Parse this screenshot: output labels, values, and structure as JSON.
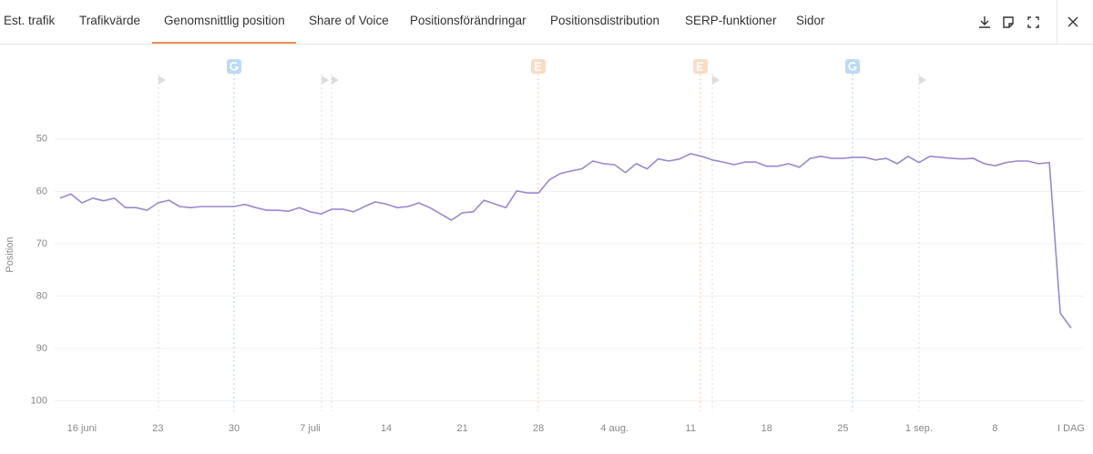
{
  "tabs": [
    "Est. trafik",
    "Trafikvärde",
    "Genomsnittlig position",
    "Share of Voice",
    "Positionsförändringar",
    "Positionsdistribution",
    "SERP-funktioner",
    "Sidor"
  ],
  "active_tab": 2,
  "chart_data": {
    "type": "line",
    "y_label": "Position",
    "y_inverted": true,
    "grid": true,
    "color": "#9b87d0",
    "ylim": [
      33,
      102
    ],
    "yticks": [
      50,
      60,
      70,
      80,
      90,
      100
    ],
    "categories": [
      null,
      null,
      "16 juni",
      null,
      null,
      null,
      null,
      null,
      null,
      "23",
      null,
      null,
      null,
      null,
      null,
      null,
      "30",
      null,
      null,
      null,
      null,
      null,
      null,
      "7 juli",
      null,
      null,
      null,
      null,
      null,
      null,
      "14",
      null,
      null,
      null,
      null,
      null,
      null,
      "21",
      null,
      null,
      null,
      null,
      null,
      null,
      "28",
      null,
      null,
      null,
      null,
      null,
      null,
      "4 aug.",
      null,
      null,
      null,
      null,
      null,
      null,
      "11",
      null,
      null,
      null,
      null,
      null,
      null,
      "18",
      null,
      null,
      null,
      null,
      null,
      null,
      "25",
      null,
      null,
      null,
      null,
      null,
      null,
      "1 sep.",
      null,
      null,
      null,
      null,
      null,
      null,
      "8",
      null,
      null,
      null,
      null,
      null,
      null,
      "I DAG"
    ],
    "values": [
      61.3,
      60.5,
      62.2,
      61.3,
      61.8,
      61.3,
      63.1,
      63.1,
      63.6,
      62.2,
      61.7,
      62.9,
      63.1,
      62.9,
      62.9,
      62.9,
      62.9,
      62.5,
      63.1,
      63.6,
      63.6,
      63.8,
      63.1,
      63.9,
      64.3,
      63.4,
      63.4,
      63.9,
      62.9,
      62.0,
      62.4,
      63.1,
      62.9,
      62.2,
      63.1,
      64.3,
      65.5,
      64.1,
      63.9,
      61.7,
      62.4,
      63.1,
      59.9,
      60.3,
      60.3,
      57.8,
      56.6,
      56.1,
      55.7,
      54.2,
      54.7,
      54.9,
      56.4,
      54.7,
      55.7,
      53.8,
      54.2,
      53.8,
      52.8,
      53.3,
      54.0,
      54.4,
      54.9,
      54.4,
      54.4,
      55.2,
      55.2,
      54.7,
      55.4,
      53.7,
      53.3,
      53.7,
      53.7,
      53.5,
      53.5,
      54.0,
      53.7,
      54.7,
      53.3,
      54.5,
      53.3,
      53.5,
      53.7,
      53.8,
      53.7,
      54.7,
      55.1,
      54.5,
      54.2,
      54.2,
      54.7,
      54.5,
      83.3,
      86.1
    ]
  }
}
